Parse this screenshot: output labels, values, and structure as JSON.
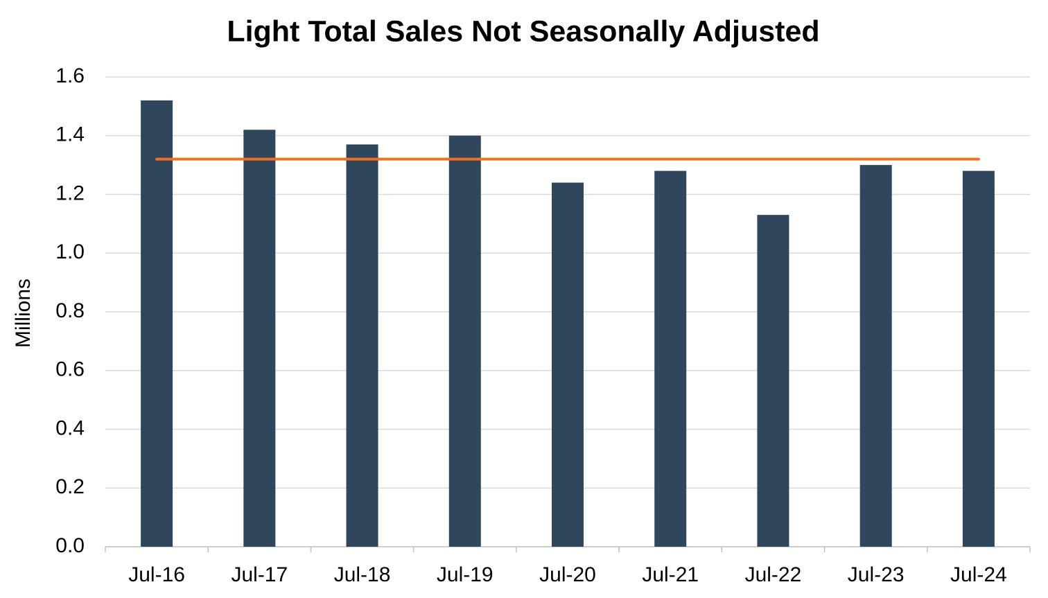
{
  "chart_data": {
    "type": "bar",
    "title": "Light Total Sales Not Seasonally Adjusted",
    "y_label": "Millions",
    "categories": [
      "Jul-16",
      "Jul-17",
      "Jul-18",
      "Jul-19",
      "Jul-20",
      "Jul-21",
      "Jul-22",
      "Jul-23",
      "Jul-24"
    ],
    "series": [
      {
        "type": "bar",
        "color": "#2e475d",
        "values": [
          1.52,
          1.42,
          1.37,
          1.4,
          1.24,
          1.28,
          1.13,
          1.3,
          1.28
        ]
      },
      {
        "type": "line",
        "color": "#f37021",
        "values": [
          1.32,
          1.32,
          1.32,
          1.32,
          1.32,
          1.32,
          1.32,
          1.32,
          1.32
        ]
      }
    ],
    "ylim": [
      0,
      1.6
    ],
    "yticks": [
      {
        "value": 0,
        "label": "0.0"
      },
      0.2,
      0.4,
      0.6,
      0.8,
      {
        "value": 1,
        "label": "1.0"
      },
      1.2,
      1.4,
      1.6
    ],
    "grid": true
  }
}
